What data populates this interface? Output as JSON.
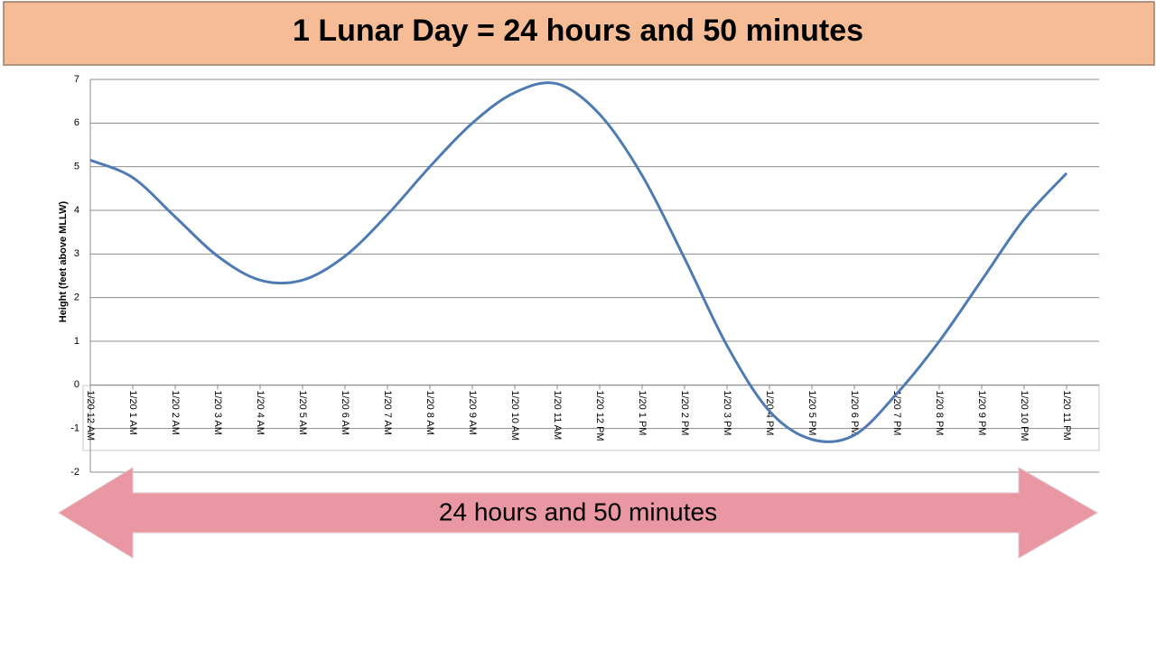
{
  "header": "1 Lunar Day = 24 hours and 50 minutes",
  "arrow_label": "24 hours and 50 minutes",
  "chart_data": {
    "type": "line",
    "y_label": "Height (feet above MLLW)",
    "categories": [
      "1/20 12 AM",
      "1/20 1 AM",
      "1/20 2 AM",
      "1/20 3 AM",
      "1/20 4 AM",
      "1/20 5 AM",
      "1/20 6 AM",
      "1/20 7 AM",
      "1/20 8 AM",
      "1/20 9 AM",
      "1/20 10 AM",
      "1/20 11 AM",
      "1/20 12 PM",
      "1/20 1 PM",
      "1/20 2 PM",
      "1/20 3 PM",
      "1/20 4 PM",
      "1/20 5 PM",
      "1/20 6 PM",
      "1/20 7 PM",
      "1/20 8 PM",
      "1/20 9 PM",
      "1/20 10 PM",
      "1/20 11 PM"
    ],
    "series": [
      {
        "name": "Height",
        "color": "#4f7bb5",
        "values": [
          5.15,
          4.75,
          3.85,
          2.95,
          2.4,
          2.4,
          2.95,
          3.9,
          5.0,
          6.0,
          6.7,
          6.9,
          6.2,
          4.8,
          2.9,
          0.9,
          -0.6,
          -1.25,
          -1.15,
          -0.2,
          1.0,
          2.4,
          3.8,
          4.85
        ]
      }
    ],
    "ylim": [
      -2,
      7
    ],
    "yticks": [
      -2,
      -1,
      0,
      1,
      2,
      3,
      4,
      5,
      6,
      7
    ],
    "grid": true
  }
}
